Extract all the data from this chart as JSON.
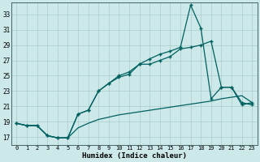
{
  "xlabel": "Humidex (Indice chaleur)",
  "background_color": "#cce8e8",
  "grid_color": "#aacccc",
  "line_color": "#006060",
  "xlim": [
    -0.5,
    23.5
  ],
  "ylim": [
    16.0,
    34.5
  ],
  "yticks": [
    17,
    19,
    21,
    23,
    25,
    27,
    29,
    31,
    33
  ],
  "xticks": [
    0,
    1,
    2,
    3,
    4,
    5,
    6,
    7,
    8,
    9,
    10,
    11,
    12,
    13,
    14,
    15,
    16,
    17,
    18,
    19,
    20,
    21,
    22,
    23
  ],
  "line1_x": [
    0,
    1,
    2,
    3,
    4,
    5,
    6,
    7,
    8,
    9,
    10,
    11,
    12,
    13,
    14,
    15,
    16,
    17,
    18,
    19,
    20,
    21,
    22,
    23
  ],
  "line1_y": [
    18.8,
    18.5,
    18.5,
    17.2,
    16.9,
    16.9,
    20.0,
    20.5,
    23.0,
    24.0,
    24.8,
    25.2,
    26.5,
    26.5,
    27.0,
    27.5,
    28.5,
    28.7,
    29.0,
    29.5,
    23.5,
    23.5,
    21.2,
    21.5
  ],
  "line2_x": [
    0,
    1,
    2,
    3,
    4,
    5,
    6,
    7,
    8,
    9,
    10,
    11,
    12,
    13,
    14,
    15,
    16,
    17,
    18,
    19,
    20,
    21,
    22,
    23
  ],
  "line2_y": [
    18.8,
    18.5,
    18.5,
    17.2,
    16.9,
    16.9,
    20.0,
    20.5,
    23.0,
    24.0,
    25.0,
    25.5,
    26.5,
    27.2,
    27.8,
    28.2,
    28.7,
    34.2,
    31.2,
    22.0,
    23.5,
    23.5,
    21.5,
    21.2
  ],
  "line3_x": [
    0,
    1,
    2,
    3,
    4,
    5,
    6,
    7,
    8,
    9,
    10,
    11,
    12,
    13,
    14,
    15,
    16,
    17,
    18,
    19,
    20,
    21,
    22,
    23
  ],
  "line3_y": [
    18.8,
    18.5,
    18.5,
    17.2,
    16.9,
    16.9,
    18.2,
    18.8,
    19.3,
    19.6,
    19.9,
    20.1,
    20.3,
    20.5,
    20.7,
    20.9,
    21.1,
    21.3,
    21.5,
    21.7,
    22.0,
    22.2,
    22.4,
    21.5
  ],
  "figwidth": 3.2,
  "figheight": 2.0,
  "dpi": 100
}
